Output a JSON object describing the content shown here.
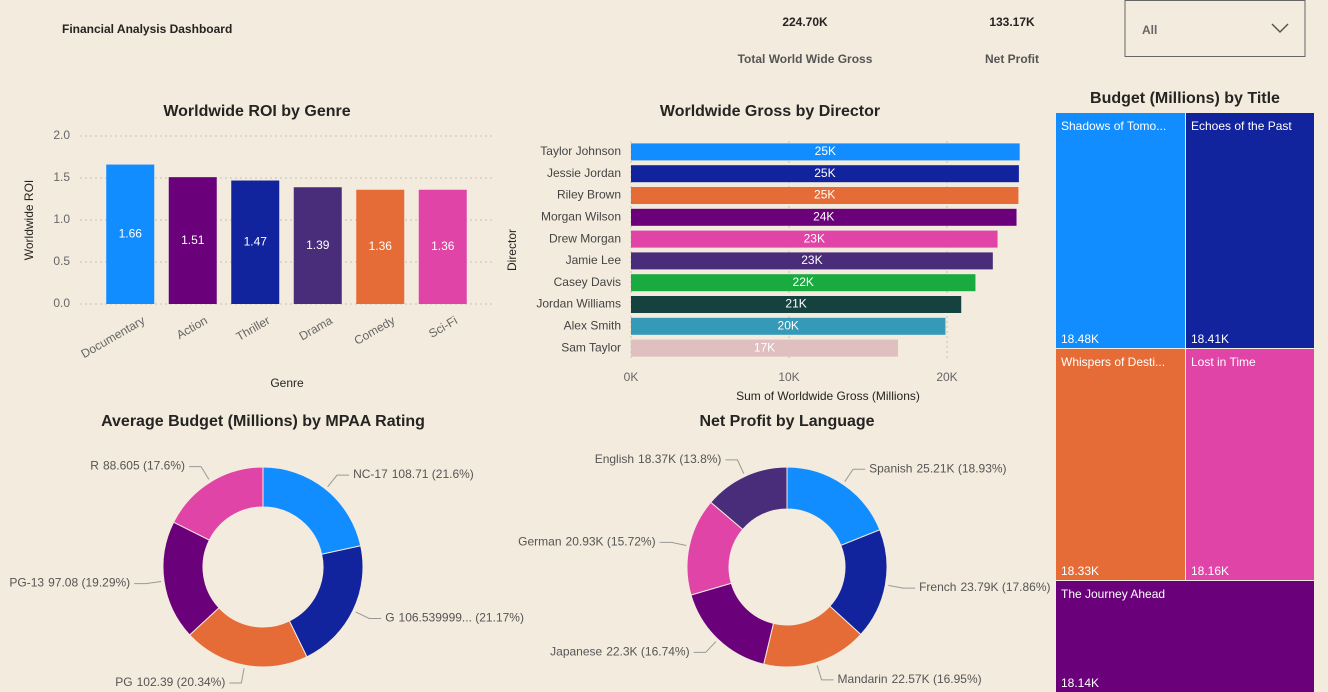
{
  "header": {
    "title": "Financial Analysis Dashboard"
  },
  "kpis": [
    {
      "value": "224.70K",
      "label": "Total World Wide Gross"
    },
    {
      "value": "133.17K",
      "label": "Net Profit"
    }
  ],
  "slicer": {
    "selected": "All"
  },
  "chart_data": [
    {
      "type": "bar",
      "title": "Worldwide ROI by Genre",
      "x_label": "Genre",
      "y_label": "Worldwide ROI",
      "categories": [
        "Documentary",
        "Action",
        "Thriller",
        "Drama",
        "Comedy",
        "Sci-Fi"
      ],
      "values": [
        1.66,
        1.51,
        1.47,
        1.39,
        1.36,
        1.36
      ],
      "colors": [
        "#118dff",
        "#6b007b",
        "#12239e",
        "#4a2d7a",
        "#e66c37",
        "#e044a7"
      ],
      "ylim": [
        0,
        2
      ],
      "yticks": [
        {
          "value": 0,
          "label": "0.0"
        },
        {
          "value": 0.5,
          "label": "0.5"
        },
        {
          "value": 1,
          "label": "1.0"
        },
        {
          "value": 1.5,
          "label": "1.5"
        },
        {
          "value": 2,
          "label": "2.0"
        }
      ],
      "grid": true
    },
    {
      "type": "hbar",
      "title": "Worldwide Gross by Director",
      "x_label": "Sum of Worldwide Gross (Millions)",
      "y_label": "Director",
      "categories": [
        "Taylor Johnson",
        "Jessie Jordan",
        "Riley Brown",
        "Morgan Wilson",
        "Drew Morgan",
        "Jamie Lee",
        "Casey Davis",
        "Jordan Williams",
        "Alex Smith",
        "Sam Taylor"
      ],
      "values": [
        24600,
        24550,
        24520,
        24400,
        23200,
        22900,
        21800,
        20900,
        19900,
        16900
      ],
      "value_labels": [
        "25K",
        "25K",
        "25K",
        "24K",
        "23K",
        "23K",
        "22K",
        "21K",
        "20K",
        "17K"
      ],
      "colors": [
        "#118dff",
        "#12239e",
        "#e66c37",
        "#6b007b",
        "#e044a7",
        "#4a2d7a",
        "#1aab40",
        "#15423f",
        "#3599b8",
        "#dfbfbf"
      ],
      "xlim": [
        0,
        25000
      ],
      "xticks": [
        {
          "value": 0,
          "label": "0K"
        },
        {
          "value": 10000,
          "label": "10K"
        },
        {
          "value": 20000,
          "label": "20K"
        }
      ],
      "grid": true
    },
    {
      "type": "donut",
      "title": "Average Budget (Millions) by MPAA Rating",
      "categories": [
        "NC-17",
        "G",
        "PG",
        "PG-13",
        "R"
      ],
      "values": [
        108.71,
        106.539999,
        102.39,
        97.08,
        88.605
      ],
      "value_labels": [
        "108.71 (21.6%)",
        "106.539999... (21.17%)",
        "102.39 (20.34%)",
        "97.08 (19.29%)",
        "88.605 (17.6%)"
      ],
      "colors": [
        "#118dff",
        "#12239e",
        "#e66c37",
        "#6b007b",
        "#e044a7"
      ]
    },
    {
      "type": "donut",
      "title": "Net Profit by Language",
      "categories": [
        "Spanish",
        "French",
        "Mandarin",
        "Japanese",
        "German",
        "English"
      ],
      "values": [
        25210,
        23790,
        22570,
        22300,
        20930,
        18370
      ],
      "value_labels": [
        "25.21K (18.93%)",
        "23.79K (17.86%)",
        "22.57K (16.95%)",
        "22.3K (16.74%)",
        "20.93K (15.72%)",
        "18.37K (13.8%)"
      ],
      "colors": [
        "#118dff",
        "#12239e",
        "#e66c37",
        "#6b007b",
        "#e044a7",
        "#4a2d7a"
      ]
    },
    {
      "type": "treemap",
      "title": "Budget (Millions) by Title",
      "categories": [
        "Shadows of Tomo...",
        "Echoes of the Past",
        "Whispers of Desti...",
        "Lost in Time",
        "The Journey Ahead"
      ],
      "values": [
        18480,
        18410,
        18330,
        18160,
        18140
      ],
      "value_labels": [
        "18.48K",
        "18.41K",
        "18.33K",
        "18.16K",
        "18.14K"
      ],
      "colors": [
        "#118dff",
        "#12239e",
        "#e66c37",
        "#e044a7",
        "#6b007b"
      ]
    }
  ]
}
